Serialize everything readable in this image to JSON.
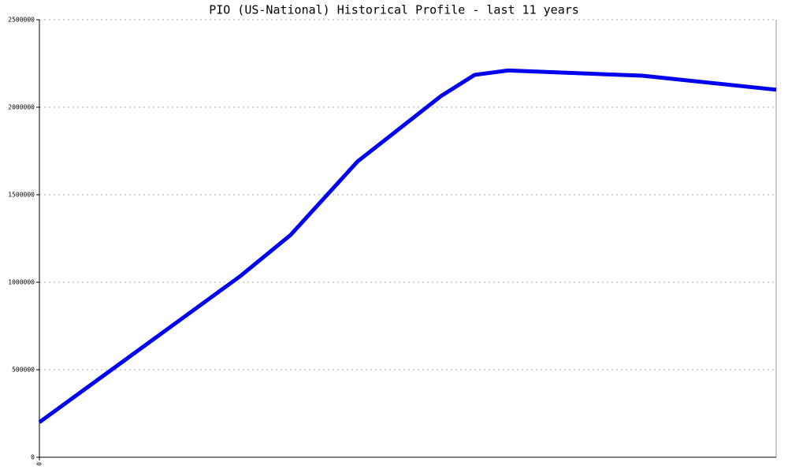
{
  "chart_data": {
    "type": "line",
    "title": "PIO (US-National) Historical Profile - last 11 years",
    "x": [
      0,
      3,
      3.75,
      4.75,
      6,
      6.5,
      7,
      9,
      11
    ],
    "series": [
      {
        "name": "PIO",
        "color": "#0000ee",
        "values": [
          200000,
          1035000,
          1270000,
          1690000,
          2065000,
          2185000,
          2210000,
          2180000,
          2100000
        ]
      }
    ],
    "xlim": [
      0,
      11
    ],
    "xticks": [
      0
    ],
    "ylim": [
      0,
      2500000
    ],
    "yticks": [
      0,
      500000,
      1000000,
      1500000,
      2000000,
      2500000
    ],
    "grid": true
  }
}
